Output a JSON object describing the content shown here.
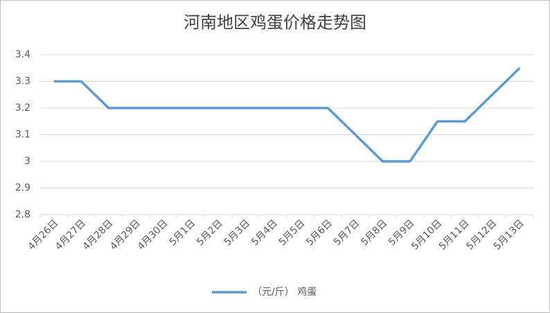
{
  "chart_data": {
    "type": "line",
    "title": "河南地区鸡蛋价格走势图",
    "categories": [
      "4月26日",
      "4月27日",
      "4月28日",
      "4月29日",
      "4月30日",
      "5月1日",
      "5月2日",
      "5月3日",
      "5月4日",
      "5月5日",
      "5月6日",
      "5月7日",
      "5月8日",
      "5月9日",
      "5月10日",
      "5月11日",
      "5月12日",
      "5月13日"
    ],
    "series": [
      {
        "name": "（元/斤） 鸡蛋",
        "color": "#5b9bd5",
        "values": [
          3.3,
          3.3,
          3.2,
          3.2,
          3.2,
          3.2,
          3.2,
          3.2,
          3.2,
          3.2,
          3.2,
          3.1,
          3.0,
          3.0,
          3.15,
          3.15,
          3.25,
          3.35
        ]
      }
    ],
    "ylim": [
      2.8,
      3.4
    ],
    "yticks": [
      2.8,
      2.9,
      3,
      3.1,
      3.2,
      3.3,
      3.4
    ],
    "grid": true,
    "legend": "bottom"
  }
}
